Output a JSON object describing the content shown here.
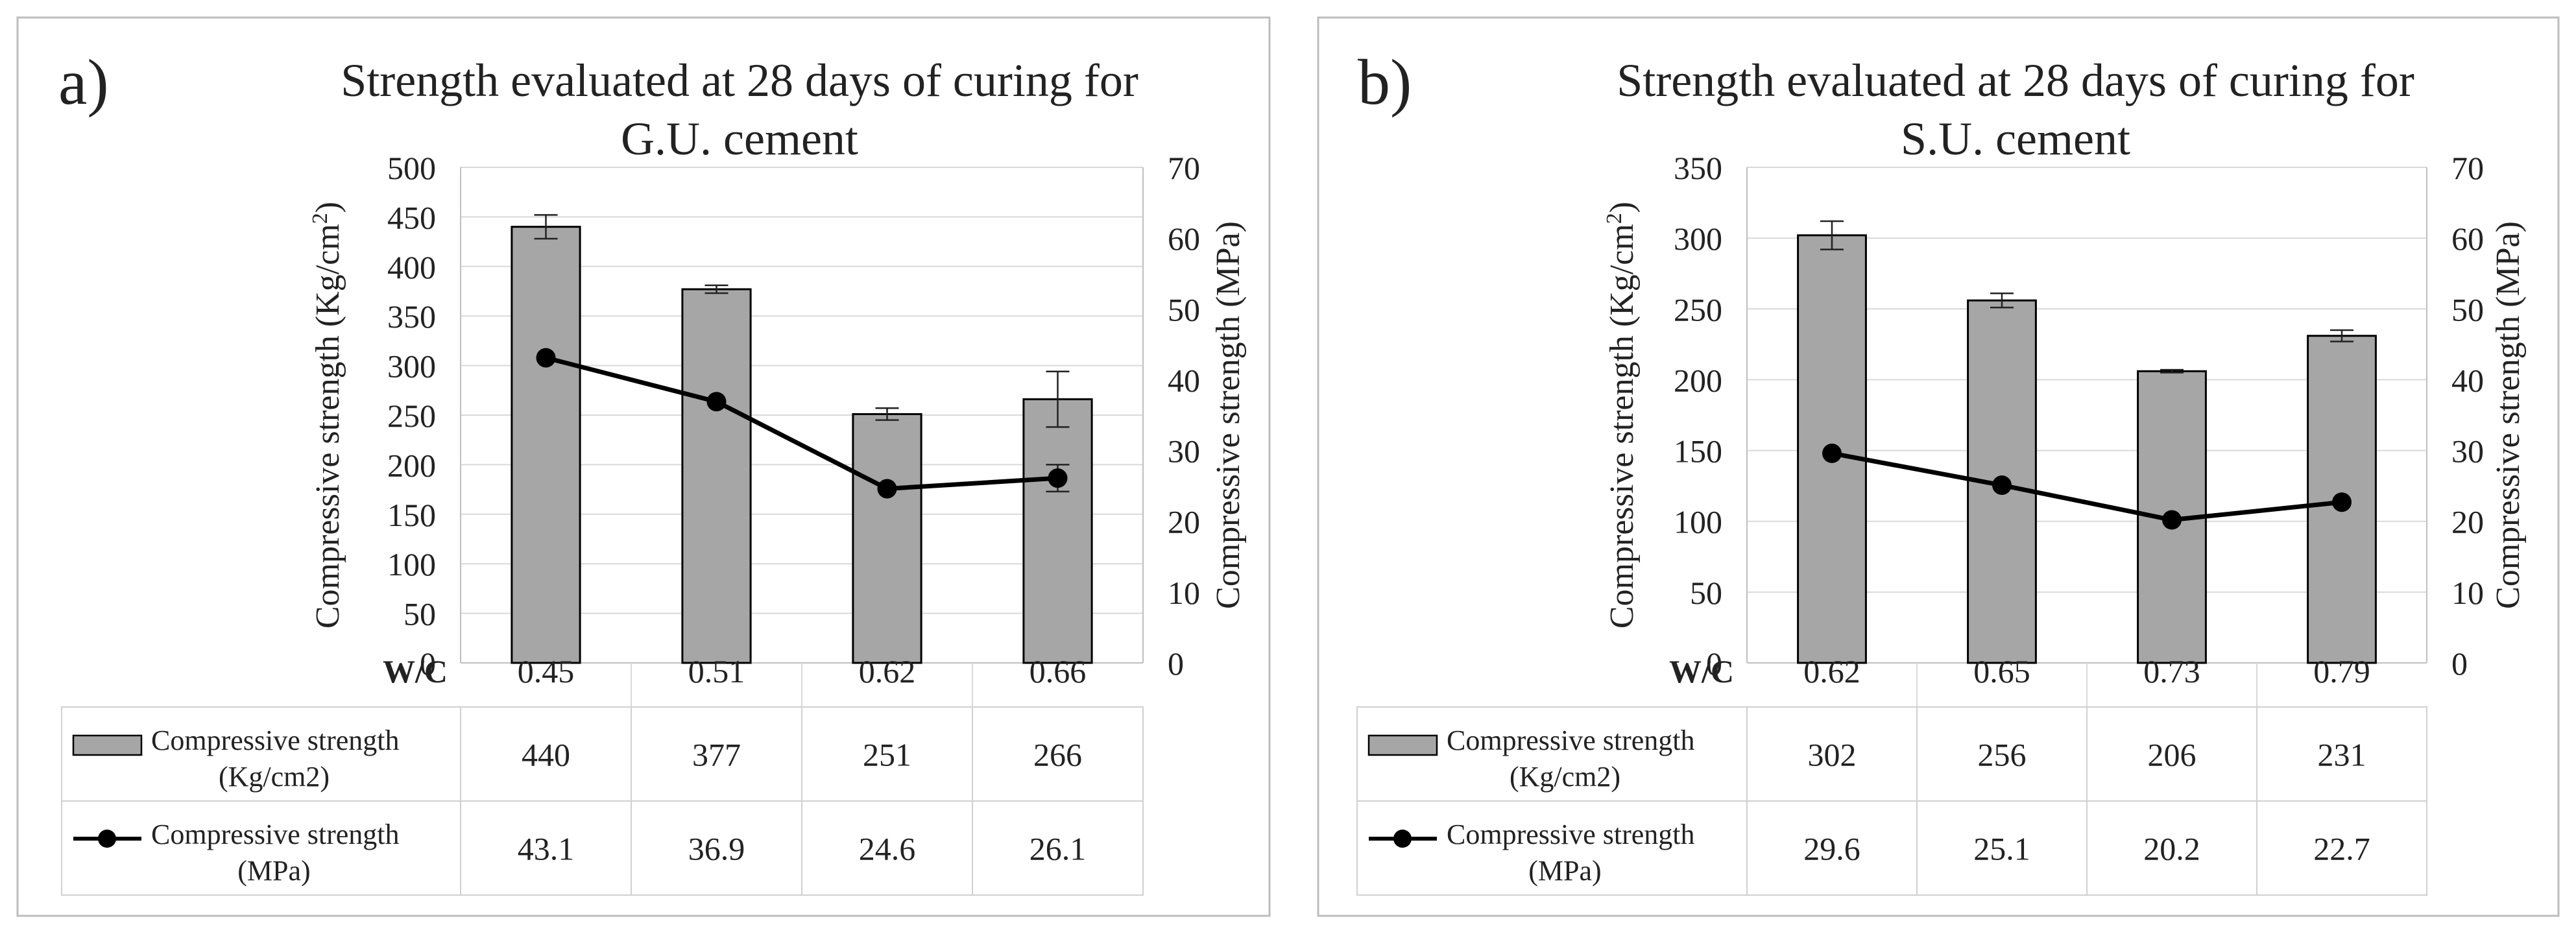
{
  "chart_data": [
    {
      "type": "bar+line",
      "panel_label": "a)",
      "title_line1": "Strength evaluated at 28 days of curing for",
      "title_line2": "G.U. cement",
      "x_label": "W/C",
      "categories": [
        "0.45",
        "0.51",
        "0.62",
        "0.66"
      ],
      "y_left": {
        "label": "Compressive strength (Kg/cm",
        "label_sup": "2",
        "label_close": ")",
        "ylim": [
          0,
          500
        ],
        "ticks": [
          "0",
          "50",
          "100",
          "150",
          "200",
          "250",
          "300",
          "350",
          "400",
          "450",
          "500"
        ]
      },
      "y_right": {
        "label": "Compressive strength (MPa)",
        "ylim": [
          0,
          70
        ],
        "ticks": [
          "0",
          "10",
          "20",
          "30",
          "40",
          "50",
          "60",
          "70"
        ]
      },
      "bars": {
        "name_line1": "Compressive strength",
        "name_line2": "(Kg/cm2)",
        "values": [
          440,
          377,
          251,
          266
        ],
        "labels": [
          "440",
          "377",
          "251",
          "266"
        ],
        "errors": [
          12,
          4,
          6,
          28
        ],
        "color": "#a6a6a6"
      },
      "line": {
        "name_line1": "Compressive strength",
        "name_line2": "(MPa)",
        "values": [
          43.1,
          36.9,
          24.6,
          26.1
        ],
        "labels": [
          "43.1",
          "36.9",
          "24.6",
          "26.1"
        ],
        "errors": [
          0,
          0,
          0,
          1.9
        ],
        "color": "#000000"
      }
    },
    {
      "type": "bar+line",
      "panel_label": "b)",
      "title_line1": "Strength evaluated at 28 days of curing for",
      "title_line2": "S.U. cement",
      "x_label": "W/C",
      "categories": [
        "0.62",
        "0.65",
        "0.73",
        "0.79"
      ],
      "y_left": {
        "label": "Compressive strength (Kg/cm",
        "label_sup": "2",
        "label_close": ")",
        "ylim": [
          0,
          350
        ],
        "ticks": [
          "0",
          "50",
          "100",
          "150",
          "200",
          "250",
          "300",
          "350"
        ]
      },
      "y_right": {
        "label": "Compressive strength (MPa)",
        "ylim": [
          0,
          70
        ],
        "ticks": [
          "0",
          "10",
          "20",
          "30",
          "40",
          "50",
          "60",
          "70"
        ]
      },
      "bars": {
        "name_line1": "Compressive strength",
        "name_line2": "(Kg/cm2)",
        "values": [
          302,
          256,
          206,
          231
        ],
        "labels": [
          "302",
          "256",
          "206",
          "231"
        ],
        "errors": [
          10,
          5,
          1,
          4
        ],
        "color": "#a6a6a6"
      },
      "line": {
        "name_line1": "Compressive strength",
        "name_line2": "(MPa)",
        "values": [
          29.6,
          25.1,
          20.2,
          22.7
        ],
        "labels": [
          "29.6",
          "25.1",
          "20.2",
          "22.7"
        ],
        "errors": [
          0,
          0,
          0,
          0
        ],
        "color": "#000000"
      }
    }
  ]
}
